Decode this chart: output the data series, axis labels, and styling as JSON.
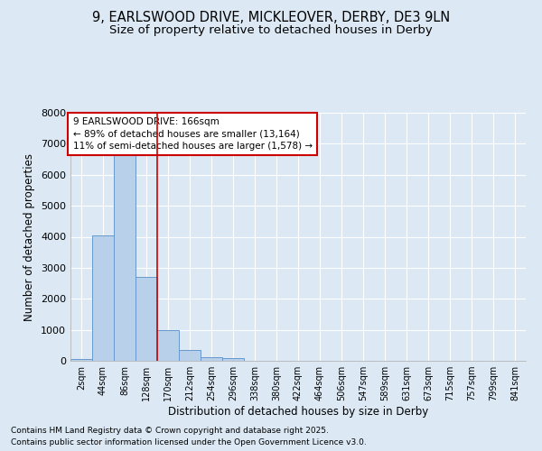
{
  "title_line1": "9, EARLSWOOD DRIVE, MICKLEOVER, DERBY, DE3 9LN",
  "title_line2": "Size of property relative to detached houses in Derby",
  "xlabel": "Distribution of detached houses by size in Derby",
  "ylabel": "Number of detached properties",
  "categories": [
    "2sqm",
    "44sqm",
    "86sqm",
    "128sqm",
    "170sqm",
    "212sqm",
    "254sqm",
    "296sqm",
    "338sqm",
    "380sqm",
    "422sqm",
    "464sqm",
    "506sqm",
    "547sqm",
    "589sqm",
    "631sqm",
    "673sqm",
    "715sqm",
    "757sqm",
    "799sqm",
    "841sqm"
  ],
  "values": [
    50,
    4050,
    6700,
    2700,
    1000,
    350,
    130,
    100,
    0,
    0,
    0,
    0,
    0,
    0,
    0,
    0,
    0,
    0,
    0,
    0,
    0
  ],
  "bar_color": "#b8d0ea",
  "bar_edge_color": "#6699cc",
  "vline_pos": 3.5,
  "vline_color": "#cc0000",
  "annotation_box_text": "9 EARLSWOOD DRIVE: 166sqm\n← 89% of detached houses are smaller (13,164)\n11% of semi-detached houses are larger (1,578) →",
  "annotation_box_color": "#cc0000",
  "annotation_box_facecolor": "white",
  "ylim": [
    0,
    8000
  ],
  "yticks": [
    0,
    1000,
    2000,
    3000,
    4000,
    5000,
    6000,
    7000,
    8000
  ],
  "background_color": "#dce9f5",
  "plot_background_color": "#dce9f5",
  "grid_color": "white",
  "footer_line1": "Contains HM Land Registry data © Crown copyright and database right 2025.",
  "footer_line2": "Contains public sector information licensed under the Open Government Licence v3.0.",
  "title_fontsize": 10.5,
  "subtitle_fontsize": 9.5,
  "tick_fontsize": 7,
  "ylabel_fontsize": 8.5,
  "xlabel_fontsize": 8.5,
  "footer_fontsize": 6.5,
  "annotation_fontsize": 7.5
}
